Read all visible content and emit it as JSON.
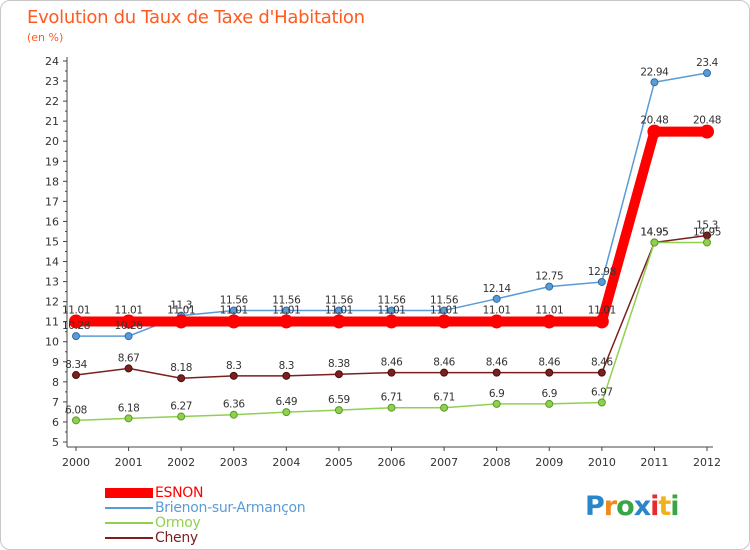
{
  "title": "Evolution du Taux de Taxe d'Habitation",
  "subtitle": "(en %)",
  "logo": {
    "text": "Proxiti",
    "letter_colors": [
      "#2a86c8",
      "#f08a1c",
      "#3aa544",
      "#2a86c8",
      "#e52b2b",
      "#f0b31c",
      "#3aa544"
    ]
  },
  "chart_data": {
    "type": "line",
    "categories": [
      "2000",
      "2001",
      "2002",
      "2003",
      "2004",
      "2005",
      "2006",
      "2007",
      "2008",
      "2009",
      "2010",
      "2011",
      "2012"
    ],
    "ylim": [
      5,
      24
    ],
    "yticks": [
      "5",
      "6",
      "7",
      "8",
      "9",
      "10",
      "11",
      "12",
      "13",
      "14",
      "15",
      "16",
      "17",
      "18",
      "19",
      "20",
      "21",
      "22",
      "23",
      "24"
    ],
    "grid": false,
    "legend_position": "bottom-left",
    "series": [
      {
        "name": "ESNON",
        "color": "#ff0000",
        "values": [
          11.01,
          11.01,
          11.01,
          11.01,
          11.01,
          11.01,
          11.01,
          11.01,
          11.01,
          11.01,
          11.01,
          20.48,
          20.48
        ],
        "labels": [
          "11.01",
          "11.01",
          "11.01",
          "11.01",
          "11.01",
          "11.01",
          "11.01",
          "11.01",
          "11.01",
          "11.01",
          "11.01",
          "20.48",
          "20.48"
        ]
      },
      {
        "name": "Brienon-sur-Armançon",
        "color": "#5b9bd5",
        "values": [
          10.28,
          10.28,
          11.3,
          11.56,
          11.56,
          11.56,
          11.56,
          11.56,
          12.14,
          12.75,
          12.98,
          22.94,
          23.4
        ],
        "labels": [
          "10.28",
          "10.28",
          "11.3",
          "11.56",
          "11.56",
          "11.56",
          "11.56",
          "11.56",
          "12.14",
          "12.75",
          "12.98",
          "22.94",
          "23.4"
        ]
      },
      {
        "name": "Ormoy",
        "color": "#8fd14f",
        "values": [
          6.08,
          6.18,
          6.27,
          6.36,
          6.49,
          6.59,
          6.71,
          6.71,
          6.9,
          6.9,
          6.97,
          14.95,
          14.95
        ],
        "labels": [
          "6.08",
          "6.18",
          "6.27",
          "6.36",
          "6.49",
          "6.59",
          "6.71",
          "6.71",
          "6.9",
          "6.9",
          "6.97",
          "14.95",
          "14.95"
        ]
      },
      {
        "name": "Cheny",
        "color": "#7b1f1f",
        "values": [
          8.34,
          8.67,
          8.18,
          8.3,
          8.3,
          8.38,
          8.46,
          8.46,
          8.46,
          8.46,
          8.46,
          14.95,
          15.3
        ],
        "labels": [
          "8.34",
          "8.67",
          "8.18",
          "8.3",
          "8.3",
          "8.38",
          "8.46",
          "8.46",
          "8.46",
          "8.46",
          "8.46",
          "14.95",
          "15.3"
        ]
      }
    ]
  }
}
